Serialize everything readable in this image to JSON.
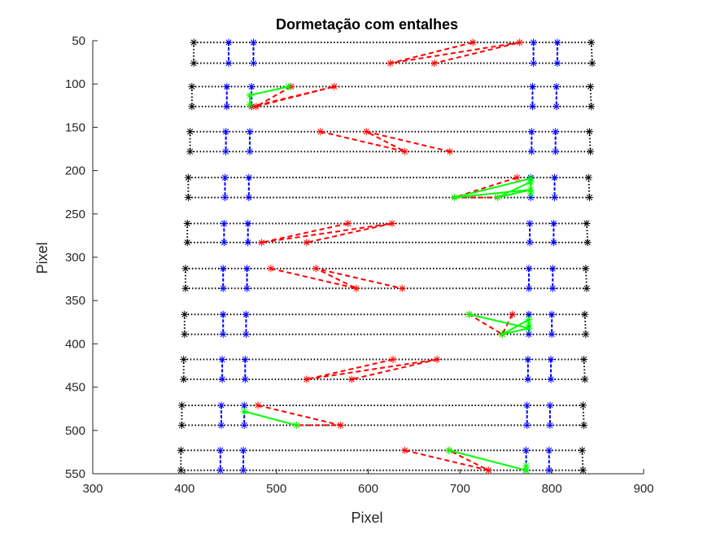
{
  "chart_data": {
    "type": "scatter",
    "title": "Dormetação com entalhes",
    "xlabel": "Pixel",
    "ylabel": "Pixel",
    "xlim": [
      300,
      900
    ],
    "ylim": [
      50,
      550
    ],
    "y_reversed": true,
    "grid": false,
    "x_ticks": [
      "300",
      "400",
      "500",
      "600",
      "700",
      "800",
      "900"
    ],
    "y_ticks": [
      "50",
      "100",
      "150",
      "200",
      "250",
      "300",
      "350",
      "400",
      "450",
      "500",
      "550"
    ],
    "colors": {
      "outline": "#000000",
      "rail": "#0000ff",
      "dashed": "#ff0000",
      "solid": "#00ff00"
    },
    "sleepers": [
      {
        "top": 52,
        "bottom": 76,
        "x_left": [
          410,
          410
        ],
        "x_right": [
          843,
          844
        ],
        "rail_top": [
          448,
          475,
          780,
          806
        ],
        "rail_bottom": [
          448,
          475,
          780,
          806
        ],
        "dashed": [
          [
            714,
            52
          ],
          [
            624,
            76
          ],
          [
            765,
            52
          ],
          [
            672,
            76
          ]
        ],
        "solid": []
      },
      {
        "top": 103,
        "bottom": 126,
        "x_left": [
          408,
          408
        ],
        "x_right": [
          842,
          843
        ],
        "rail_top": [
          446,
          473,
          779,
          805
        ],
        "rail_bottom": [
          446,
          473,
          779,
          805
        ],
        "dashed": [
          [
            516,
            103
          ],
          [
            478,
            126
          ],
          [
            563,
            103
          ],
          [
            473,
            126
          ]
        ],
        "solid": [
          [
            513,
            103
          ],
          [
            471,
            113
          ],
          [
            471,
            124
          ]
        ]
      },
      {
        "top": 155,
        "bottom": 178,
        "x_left": [
          406,
          406
        ],
        "x_right": [
          841,
          842
        ],
        "rail_top": [
          445,
          471,
          778,
          804
        ],
        "rail_bottom": [
          445,
          471,
          778,
          804
        ],
        "dashed": [
          [
            548,
            155
          ],
          [
            640,
            178
          ],
          [
            598,
            155
          ],
          [
            689,
            178
          ]
        ],
        "solid": []
      },
      {
        "top": 208,
        "bottom": 231,
        "x_left": [
          404,
          404
        ],
        "x_right": [
          840,
          841
        ],
        "rail_top": [
          444,
          470,
          777,
          803
        ],
        "rail_bottom": [
          444,
          470,
          777,
          803
        ],
        "dashed": [
          [
            762,
            208
          ],
          [
            694,
            231
          ],
          [
            741,
            231
          ]
        ],
        "solid": [
          [
            777,
            209
          ],
          [
            694,
            231
          ],
          [
            777,
            222
          ],
          [
            741,
            231
          ],
          [
            777,
            213
          ],
          [
            777,
            226
          ]
        ]
      },
      {
        "top": 261,
        "bottom": 283,
        "x_left": [
          403,
          403
        ],
        "x_right": [
          838,
          839
        ],
        "rail_top": [
          443,
          469,
          776,
          802
        ],
        "rail_bottom": [
          443,
          469,
          776,
          802
        ],
        "dashed": [
          [
            578,
            261
          ],
          [
            484,
            283
          ],
          [
            626,
            261
          ],
          [
            533,
            283
          ]
        ],
        "solid": []
      },
      {
        "top": 313,
        "bottom": 336,
        "x_left": [
          401,
          401
        ],
        "x_right": [
          837,
          838
        ],
        "rail_top": [
          442,
          468,
          775,
          801
        ],
        "rail_bottom": [
          442,
          468,
          775,
          801
        ],
        "dashed": [
          [
            494,
            313
          ],
          [
            587,
            336
          ],
          [
            543,
            313
          ],
          [
            637,
            336
          ]
        ],
        "solid": []
      },
      {
        "top": 366,
        "bottom": 389,
        "x_left": [
          400,
          400
        ],
        "x_right": [
          836,
          837
        ],
        "rail_top": [
          442,
          467,
          775,
          800
        ],
        "rail_bottom": [
          442,
          467,
          775,
          800
        ],
        "dashed": [
          [
            757,
            366
          ],
          [
            746,
            389
          ],
          [
            710,
            366
          ]
        ],
        "solid": [
          [
            710,
            366
          ],
          [
            775,
            382
          ],
          [
            746,
            389
          ],
          [
            775,
            372
          ],
          [
            775,
            378
          ]
        ]
      },
      {
        "top": 418,
        "bottom": 441,
        "x_left": [
          399,
          399
        ],
        "x_right": [
          835,
          836
        ],
        "rail_top": [
          441,
          466,
          774,
          799
        ],
        "rail_bottom": [
          441,
          466,
          774,
          799
        ],
        "dashed": [
          [
            627,
            418
          ],
          [
            533,
            441
          ],
          [
            675,
            418
          ],
          [
            582,
            441
          ]
        ],
        "solid": []
      },
      {
        "top": 471,
        "bottom": 494,
        "x_left": [
          397,
          397
        ],
        "x_right": [
          834,
          835
        ],
        "rail_top": [
          440,
          465,
          773,
          798
        ],
        "rail_bottom": [
          440,
          465,
          773,
          798
        ],
        "dashed": [
          [
            480,
            471
          ],
          [
            570,
            494
          ],
          [
            522,
            494
          ]
        ],
        "solid": [
          [
            465,
            478
          ],
          [
            522,
            494
          ]
        ]
      },
      {
        "top": 523,
        "bottom": 546,
        "x_left": [
          396,
          396
        ],
        "x_right": [
          833,
          834
        ],
        "rail_top": [
          439,
          464,
          772,
          797
        ],
        "rail_bottom": [
          439,
          464,
          772,
          797
        ],
        "dashed": [
          [
            640,
            523
          ],
          [
            731,
            546
          ],
          [
            688,
            523
          ]
        ],
        "solid": [
          [
            688,
            523
          ],
          [
            772,
            546
          ],
          [
            772,
            541
          ]
        ]
      }
    ]
  }
}
